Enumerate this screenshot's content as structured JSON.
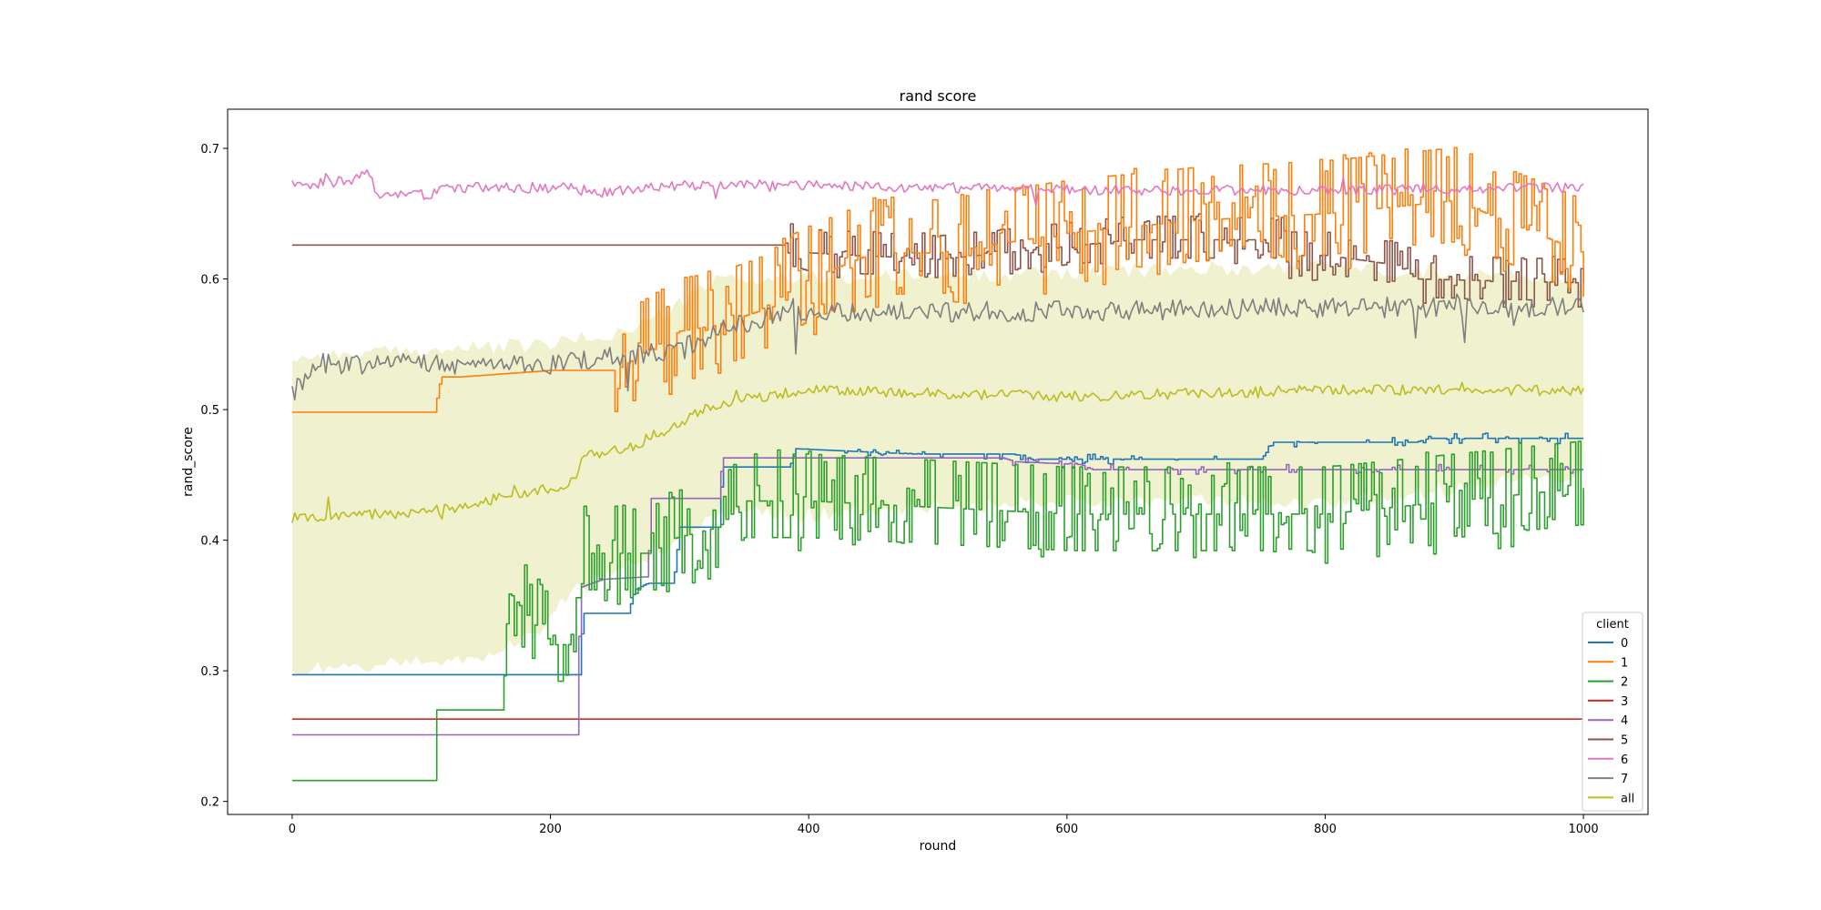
{
  "chart_data": {
    "type": "line",
    "title": "rand score",
    "xlabel": "round",
    "ylabel": "rand_score",
    "xlim": [
      -50,
      1050
    ],
    "ylim": [
      0.19,
      0.73
    ],
    "x_ticks": [
      0,
      200,
      400,
      600,
      800,
      1000
    ],
    "y_ticks": [
      0.2,
      0.3,
      0.4,
      0.5,
      0.6,
      0.7
    ],
    "grid": false,
    "legend": {
      "title": "client",
      "position": "lower-right"
    },
    "band": {
      "series": "all",
      "color": "#bcbd22",
      "opacity": 0.22,
      "lower": [
        [
          0,
          0.3
        ],
        [
          150,
          0.31
        ],
        [
          190,
          0.33
        ],
        [
          215,
          0.36
        ],
        [
          260,
          0.38
        ],
        [
          300,
          0.4
        ],
        [
          330,
          0.42
        ],
        [
          400,
          0.42
        ],
        [
          600,
          0.43
        ],
        [
          800,
          0.43
        ],
        [
          1000,
          0.45
        ]
      ],
      "upper": [
        [
          0,
          0.54
        ],
        [
          100,
          0.545
        ],
        [
          200,
          0.55
        ],
        [
          260,
          0.56
        ],
        [
          300,
          0.58
        ],
        [
          330,
          0.6
        ],
        [
          400,
          0.6
        ],
        [
          600,
          0.605
        ],
        [
          800,
          0.61
        ],
        [
          1000,
          0.6
        ]
      ]
    },
    "series": [
      {
        "name": "0",
        "color": "#1f77b4",
        "pattern": "step",
        "noise": 0.004,
        "noise_from": 380,
        "points": [
          [
            0,
            0.297
          ],
          [
            222,
            0.297
          ],
          [
            225,
            0.344
          ],
          [
            260,
            0.344
          ],
          [
            265,
            0.362
          ],
          [
            275,
            0.367
          ],
          [
            295,
            0.367
          ],
          [
            300,
            0.41
          ],
          [
            330,
            0.41
          ],
          [
            333,
            0.456
          ],
          [
            385,
            0.456
          ],
          [
            390,
            0.47
          ],
          [
            480,
            0.466
          ],
          [
            560,
            0.466
          ],
          [
            570,
            0.462
          ],
          [
            750,
            0.462
          ],
          [
            760,
            0.475
          ],
          [
            870,
            0.475
          ],
          [
            880,
            0.478
          ],
          [
            1000,
            0.478
          ]
        ]
      },
      {
        "name": "1",
        "color": "#ff7f0e",
        "pattern": "jumpy",
        "noise": 0.045,
        "noise_from": 250,
        "points": [
          [
            0,
            0.498
          ],
          [
            110,
            0.498
          ],
          [
            115,
            0.525
          ],
          [
            130,
            0.525
          ],
          [
            200,
            0.53
          ],
          [
            250,
            0.53
          ],
          [
            300,
            0.56
          ],
          [
            330,
            0.565
          ],
          [
            360,
            0.575
          ],
          [
            400,
            0.6
          ],
          [
            450,
            0.62
          ],
          [
            500,
            0.62
          ],
          [
            600,
            0.635
          ],
          [
            700,
            0.645
          ],
          [
            800,
            0.65
          ],
          [
            900,
            0.66
          ],
          [
            950,
            0.64
          ],
          [
            1000,
            0.62
          ]
        ]
      },
      {
        "name": "2",
        "color": "#2ca02c",
        "pattern": "jumpy",
        "noise": 0.04,
        "noise_from": 160,
        "points": [
          [
            0,
            0.216
          ],
          [
            110,
            0.216
          ],
          [
            112,
            0.27
          ],
          [
            165,
            0.27
          ],
          [
            168,
            0.36
          ],
          [
            200,
            0.32
          ],
          [
            222,
            0.32
          ],
          [
            225,
            0.39
          ],
          [
            280,
            0.39
          ],
          [
            290,
            0.4
          ],
          [
            330,
            0.41
          ],
          [
            350,
            0.43
          ],
          [
            400,
            0.43
          ],
          [
            600,
            0.42
          ],
          [
            800,
            0.42
          ],
          [
            900,
            0.43
          ],
          [
            1000,
            0.44
          ]
        ]
      },
      {
        "name": "3",
        "color": "#d62728",
        "pattern": "flat",
        "noise": 0,
        "noise_from": 0,
        "points": [
          [
            0,
            0.263
          ],
          [
            1000,
            0.263
          ]
        ]
      },
      {
        "name": "4",
        "color": "#9467bd",
        "pattern": "step",
        "noise": 0.004,
        "noise_from": 550,
        "points": [
          [
            0,
            0.251
          ],
          [
            220,
            0.251
          ],
          [
            223,
            0.364
          ],
          [
            240,
            0.37
          ],
          [
            275,
            0.372
          ],
          [
            278,
            0.432
          ],
          [
            300,
            0.432
          ],
          [
            330,
            0.432
          ],
          [
            333,
            0.463
          ],
          [
            550,
            0.463
          ],
          [
            560,
            0.46
          ],
          [
            610,
            0.458
          ],
          [
            620,
            0.454
          ],
          [
            1000,
            0.454
          ]
        ]
      },
      {
        "name": "5",
        "color": "#8c564b",
        "pattern": "jumpy",
        "noise": 0.02,
        "noise_from": 380,
        "points": [
          [
            0,
            0.626
          ],
          [
            380,
            0.626
          ],
          [
            400,
            0.62
          ],
          [
            500,
            0.615
          ],
          [
            600,
            0.625
          ],
          [
            650,
            0.63
          ],
          [
            700,
            0.63
          ],
          [
            765,
            0.63
          ],
          [
            770,
            0.618
          ],
          [
            800,
            0.618
          ],
          [
            860,
            0.61
          ],
          [
            870,
            0.6
          ],
          [
            1000,
            0.597
          ]
        ]
      },
      {
        "name": "6",
        "color": "#e377c2",
        "pattern": "wiggle",
        "noise": 0.004,
        "noise_from": 0,
        "points": [
          [
            0,
            0.672
          ],
          [
            40,
            0.675
          ],
          [
            60,
            0.68
          ],
          [
            65,
            0.665
          ],
          [
            110,
            0.665
          ],
          [
            115,
            0.67
          ],
          [
            220,
            0.67
          ],
          [
            225,
            0.665
          ],
          [
            300,
            0.672
          ],
          [
            400,
            0.672
          ],
          [
            600,
            0.668
          ],
          [
            800,
            0.668
          ],
          [
            1000,
            0.67
          ]
        ]
      },
      {
        "name": "7",
        "color": "#7f7f7f",
        "pattern": "wiggle",
        "noise": 0.008,
        "noise_from": 0,
        "points": [
          [
            0,
            0.51
          ],
          [
            10,
            0.525
          ],
          [
            20,
            0.535
          ],
          [
            100,
            0.535
          ],
          [
            200,
            0.535
          ],
          [
            250,
            0.54
          ],
          [
            300,
            0.545
          ],
          [
            340,
            0.565
          ],
          [
            400,
            0.575
          ],
          [
            600,
            0.575
          ],
          [
            800,
            0.578
          ],
          [
            1000,
            0.578
          ]
        ]
      },
      {
        "name": "all",
        "color": "#bcbd22",
        "pattern": "wiggle",
        "noise": 0.004,
        "noise_from": 0,
        "points": [
          [
            0,
            0.417
          ],
          [
            50,
            0.42
          ],
          [
            100,
            0.42
          ],
          [
            150,
            0.43
          ],
          [
            200,
            0.44
          ],
          [
            220,
            0.445
          ],
          [
            225,
            0.465
          ],
          [
            260,
            0.47
          ],
          [
            300,
            0.49
          ],
          [
            330,
            0.505
          ],
          [
            400,
            0.515
          ],
          [
            600,
            0.51
          ],
          [
            800,
            0.515
          ],
          [
            1000,
            0.515
          ]
        ]
      }
    ]
  }
}
